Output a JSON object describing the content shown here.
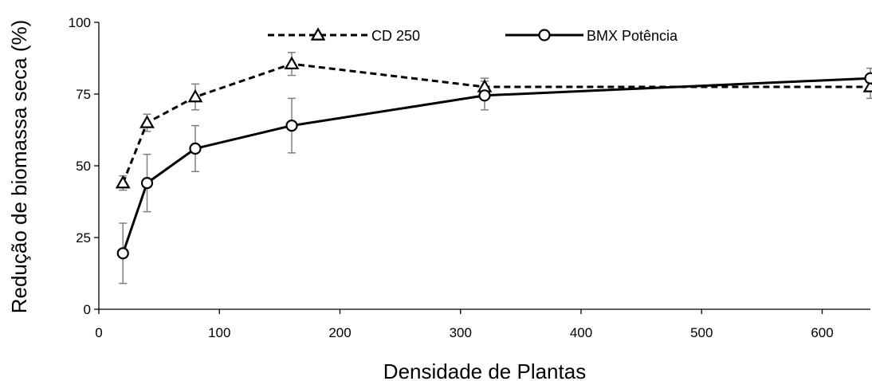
{
  "chart_data": {
    "type": "line",
    "title": "",
    "xlabel": "Densidade de Plantas",
    "ylabel": "Redução de biomassa seca (%)",
    "xlim": [
      0,
      640
    ],
    "ylim": [
      0,
      100
    ],
    "xticks": [
      0,
      100,
      200,
      300,
      400,
      500,
      600
    ],
    "yticks": [
      0,
      25,
      50,
      75,
      100
    ],
    "grid": false,
    "legend": "top",
    "series": [
      {
        "name": "CD 250",
        "style": "dashed",
        "marker": "triangle",
        "color": "#000000",
        "x": [
          20,
          40,
          80,
          160,
          320,
          640
        ],
        "y": [
          44,
          65,
          74,
          85.5,
          77.5,
          77.5
        ],
        "err": [
          2.5,
          3,
          4.5,
          4,
          3,
          4
        ]
      },
      {
        "name": "BMX Potência",
        "style": "solid",
        "marker": "circle",
        "color": "#000000",
        "x": [
          20,
          40,
          80,
          160,
          320,
          640
        ],
        "y": [
          19.5,
          44,
          56,
          64,
          74.5,
          80.5
        ],
        "err": [
          10.5,
          10,
          8,
          9.5,
          5,
          3.5
        ]
      }
    ],
    "errorbar_color": "#808080"
  }
}
